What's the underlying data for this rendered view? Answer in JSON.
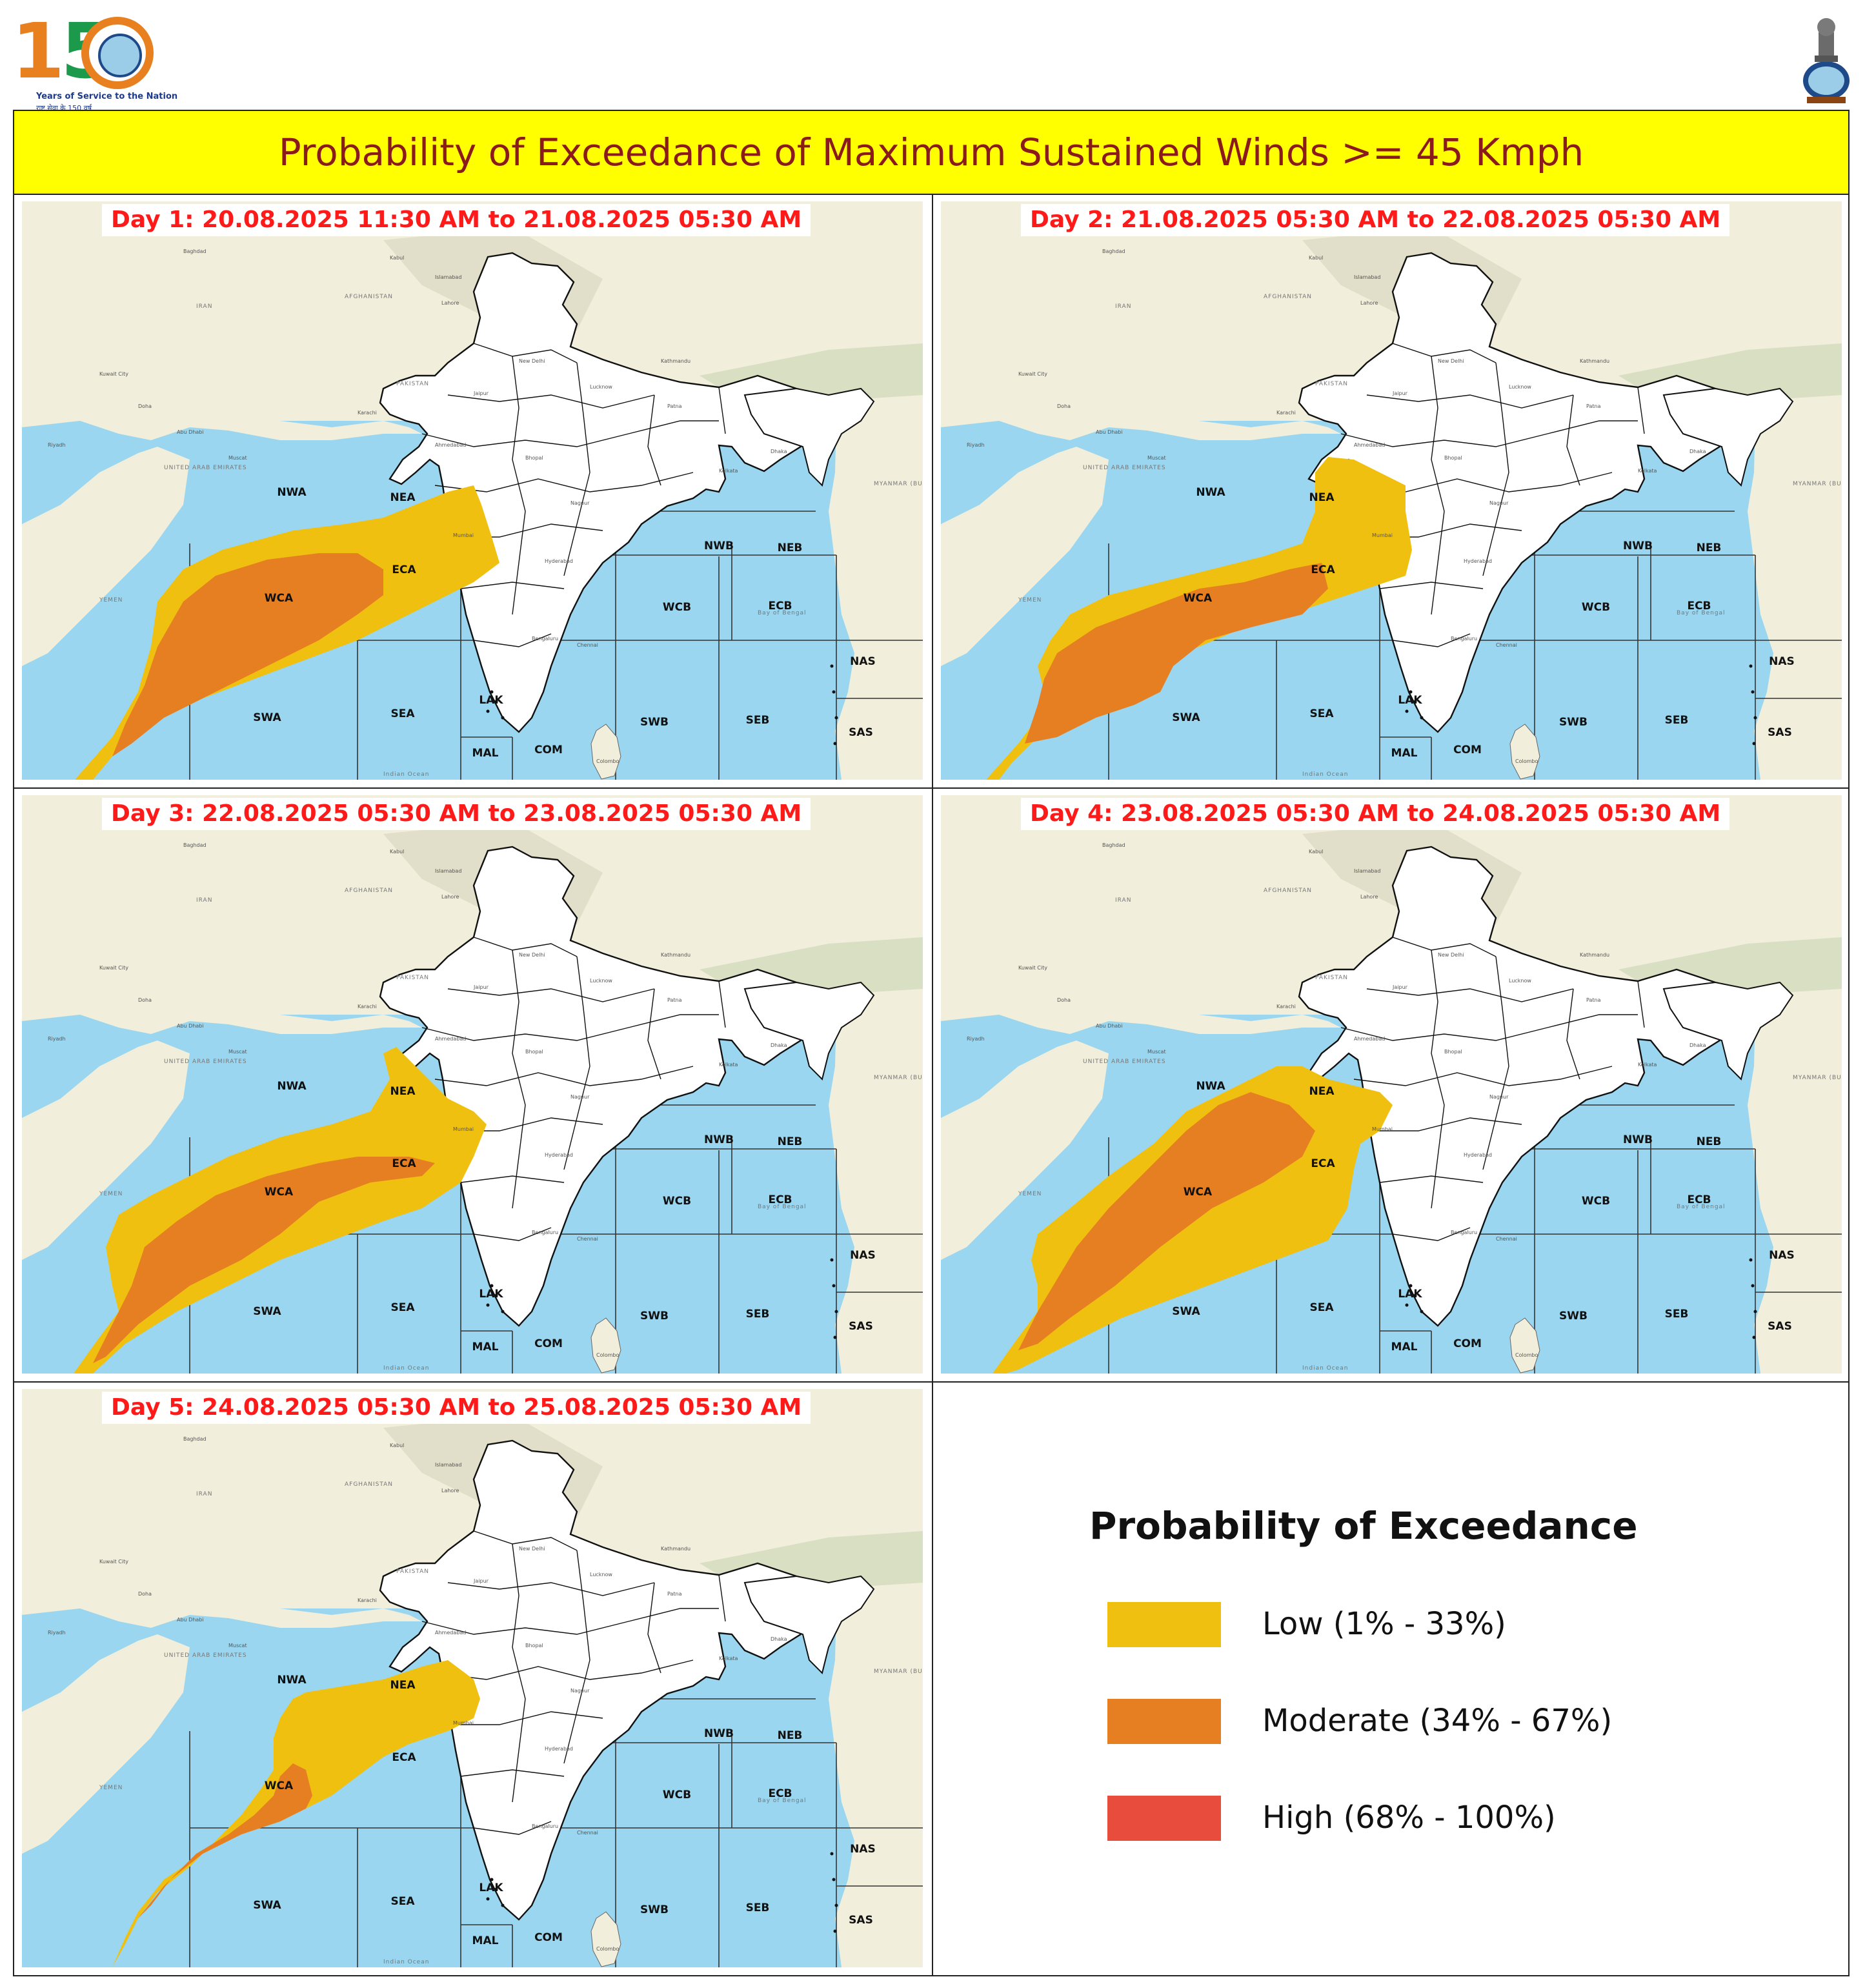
{
  "header": {
    "logo_left": {
      "digits_1": "1",
      "digits_5": "5",
      "tagline": "Years of Service to the Nation",
      "tagline_hindi": "राष्ट्र सेवा के 150 वर्ष"
    },
    "logo_right": {
      "name": "national-emblem"
    }
  },
  "title": "Probability of Exceedance of Maximum Sustained Winds >= 45 Kmph",
  "panels": [
    {
      "label": "Day 1: 20.08.2025 11:30 AM to 21.08.2025 05:30 AM"
    },
    {
      "label": "Day 2: 21.08.2025 05:30 AM to 22.08.2025 05:30 AM"
    },
    {
      "label": "Day 3: 22.08.2025 05:30 AM to 23.08.2025 05:30 AM"
    },
    {
      "label": "Day 4: 23.08.2025 05:30 AM to 24.08.2025 05:30 AM"
    },
    {
      "label": "Day 5: 24.08.2025 05:30 AM to 25.08.2025 05:30 AM"
    }
  ],
  "regions": [
    "NWA",
    "NEA",
    "ECA",
    "WCA",
    "SWA",
    "SEA",
    "LAK",
    "MAL",
    "COM",
    "SWB",
    "SEB",
    "WCB",
    "ECB",
    "NWB",
    "NEB",
    "NAS",
    "SAS"
  ],
  "map_text": {
    "iran": "IRAN",
    "pakistan": "PAKISTAN",
    "afghanistan": "AFGHANISTAN",
    "uae": "UNITED ARAB EMIRATES",
    "yemen": "YEMEN",
    "myanmar": "MYANMAR (BURMA)",
    "bay_of_bengal": "Bay of Bengal",
    "indian_ocean": "Indian Ocean",
    "srilanka": "Sri Lanka"
  },
  "legend": {
    "title": "Probability of Exceedance",
    "items": [
      {
        "label": "Low (1% - 33%)",
        "color": "#f0c010"
      },
      {
        "label": "Moderate (34% - 67%)",
        "color": "#e67e22"
      },
      {
        "label": "High (68% - 100%)",
        "color": "#e74c3c"
      }
    ]
  },
  "colors": {
    "sea": "#9ad6ef",
    "land": "#f1eedb",
    "title_bg": "#ffff00",
    "title_text": "#8b1a1a",
    "day_label": "#ff1a1a"
  }
}
